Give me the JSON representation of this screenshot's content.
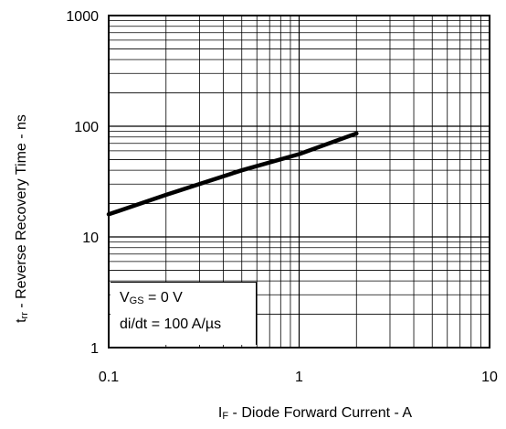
{
  "chart_data": {
    "type": "line",
    "xscale": "log",
    "yscale": "log",
    "xlim": [
      0.1,
      10
    ],
    "ylim": [
      1,
      1000
    ],
    "grid": true,
    "xticks": [
      "0.1",
      "1",
      "10"
    ],
    "yticks": [
      "1",
      "10",
      "100",
      "1000"
    ],
    "xlabel": {
      "main": "I",
      "sub": "F",
      "rest": " - Diode Forward Current - A"
    },
    "ylabel": {
      "main": "t",
      "sub": "rr",
      "rest": " - Reverse Recovery Time - ns"
    },
    "series": [
      {
        "x": [
          0.1,
          0.2,
          0.5,
          1,
          2
        ],
        "y": [
          16,
          24,
          40,
          56,
          86
        ]
      }
    ],
    "annotations": {
      "line1": {
        "main": "V",
        "sub": "GS",
        "rest": " = 0 V"
      },
      "line2": "di/dt = 100 A/µs"
    }
  }
}
